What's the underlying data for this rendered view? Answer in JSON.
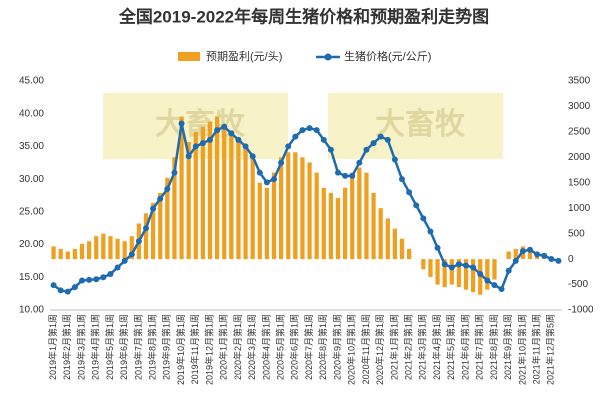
{
  "chart_data": {
    "type": "bar-line",
    "title": "全国2019-2022年每周生猪价格和预期盈利走势图",
    "watermarks": [
      "大畜牧",
      "大畜牧"
    ],
    "categories": [
      "2019年1月第1周",
      null,
      "2019年2月第1周",
      null,
      "2019年3月第1周",
      null,
      "2019年4月第1周",
      null,
      "2019年5月第1周",
      null,
      "2019年6月第1周",
      null,
      "2019年7月第1周",
      null,
      "2019年8月第1周",
      null,
      "2019年9月第1周",
      null,
      "2019年10月第1周",
      null,
      "2019年11月第1周",
      null,
      "2019年12月第1周",
      null,
      "2020年1月第1周",
      null,
      "2020年2月第1周",
      null,
      "2020年3月第1周",
      null,
      "2020年4月第1周",
      null,
      "2020年5月第1周",
      null,
      "2020年6月第1周",
      null,
      "2020年7月第1周",
      null,
      "2020年8月第1周",
      null,
      "2020年9月第1周",
      null,
      "2020年10月第1周",
      null,
      "2020年11月第1周",
      null,
      "2020年12月第1周",
      null,
      "2021年1月第1周",
      null,
      "2021年2月第1周",
      null,
      "2021年3月第1周",
      null,
      "2021年4月第1周",
      null,
      "2021年5月第1周",
      null,
      "2021年6月第1周",
      null,
      "2021年7月第1周",
      null,
      "2021年8月第1周",
      null,
      "2021年9月第1周",
      null,
      "2021年10月第1周",
      null,
      "2021年11月第1周",
      null,
      "2021年12月第5周",
      null
    ],
    "series": [
      {
        "name": "预期盈利(元/头)",
        "color": "#f0a020",
        "kind": "bar",
        "axis": "y2",
        "values": [
          250,
          200,
          150,
          200,
          300,
          350,
          450,
          500,
          450,
          400,
          350,
          450,
          700,
          900,
          1100,
          1300,
          1600,
          2000,
          2800,
          2300,
          2500,
          2600,
          2700,
          2800,
          2600,
          2500,
          2300,
          2200,
          2000,
          1500,
          1400,
          1700,
          2000,
          2100,
          2100,
          2000,
          1900,
          1700,
          1400,
          1300,
          1200,
          1400,
          1700,
          1800,
          1700,
          1300,
          1000,
          800,
          600,
          400,
          200,
          0,
          -200,
          -350,
          -500,
          -550,
          -500,
          -550,
          -600,
          -650,
          -700,
          -600,
          -400,
          0,
          150,
          200,
          250,
          200,
          100,
          50,
          0,
          -50
        ]
      },
      {
        "name": "生猪价格(元/公斤)",
        "color": "#1f6bb0",
        "kind": "line",
        "values": [
          13.8,
          13.0,
          12.8,
          13.5,
          14.5,
          14.6,
          14.7,
          15.0,
          15.5,
          16.5,
          17.5,
          18.5,
          20.5,
          22.5,
          25.5,
          27.0,
          28.5,
          31.0,
          38.5,
          33.5,
          35.0,
          35.5,
          36.0,
          37.5,
          38.0,
          37.0,
          36.0,
          35.0,
          33.5,
          31.0,
          29.5,
          30.0,
          32.5,
          35.0,
          36.5,
          37.5,
          37.8,
          37.5,
          36.0,
          34.5,
          31.0,
          30.5,
          30.5,
          32.5,
          34.5,
          35.5,
          36.5,
          36.0,
          33.0,
          30.0,
          28.0,
          26.0,
          24.0,
          22.0,
          19.5,
          17.0,
          16.5,
          17.0,
          16.8,
          16.5,
          15.5,
          14.5,
          13.8,
          13.2,
          16.0,
          17.5,
          19.0,
          19.2,
          18.5,
          18.3,
          17.8,
          17.5
        ]
      }
    ],
    "ylim": [
      10,
      45
    ],
    "yticks": [
      {
        "value": 10,
        "label": "10.00"
      },
      {
        "value": 15,
        "label": "15.00"
      },
      {
        "value": 20,
        "label": "20.00"
      },
      {
        "value": 25,
        "label": "25.00"
      },
      {
        "value": 30,
        "label": "30.00"
      },
      {
        "value": 35,
        "label": "35.00"
      },
      {
        "value": 40,
        "label": "40.00"
      },
      {
        "value": 45,
        "label": "45.00"
      }
    ],
    "y2lim": [
      -1000,
      3500
    ],
    "y2ticks": [
      -1000,
      -500,
      0,
      500,
      1000,
      1500,
      2000,
      2500,
      3000,
      3500
    ]
  }
}
